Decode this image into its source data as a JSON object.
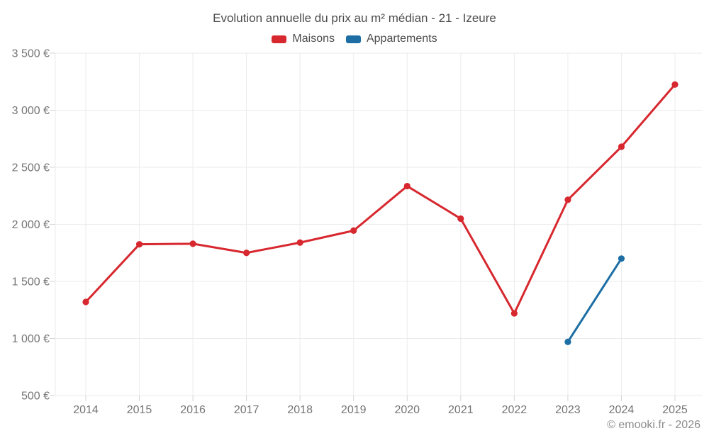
{
  "page": {
    "title": "Evolution annuelle du prix au m² médian - 21 - Izeure"
  },
  "legend": {
    "items": [
      {
        "label": "Maisons",
        "color": "#d7282f"
      },
      {
        "label": "Appartements",
        "color": "#1c6ea4"
      }
    ]
  },
  "footer": {
    "credit": "© emooki.fr - 2026"
  },
  "chart_data": {
    "type": "line",
    "title": "Evolution annuelle du prix au m² médian - 21 - Izeure",
    "categories": [
      "2014",
      "2015",
      "2016",
      "2017",
      "2018",
      "2019",
      "2020",
      "2021",
      "2022",
      "2023",
      "2024",
      "2025"
    ],
    "series": [
      {
        "name": "Maisons",
        "color": "#d7282f",
        "values": [
          1320,
          1825,
          1830,
          1750,
          1840,
          1945,
          2335,
          2050,
          1220,
          2215,
          2680,
          3225
        ]
      },
      {
        "name": "Appartements",
        "color": "#1c6ea4",
        "values": [
          null,
          null,
          null,
          null,
          null,
          null,
          null,
          null,
          null,
          970,
          1700,
          null
        ]
      }
    ],
    "xlabel": "",
    "ylabel": "",
    "ylim": [
      500,
      3500
    ],
    "ytick_step": 500,
    "ytick_suffix": " €",
    "grid": true,
    "legend_position": "top"
  }
}
